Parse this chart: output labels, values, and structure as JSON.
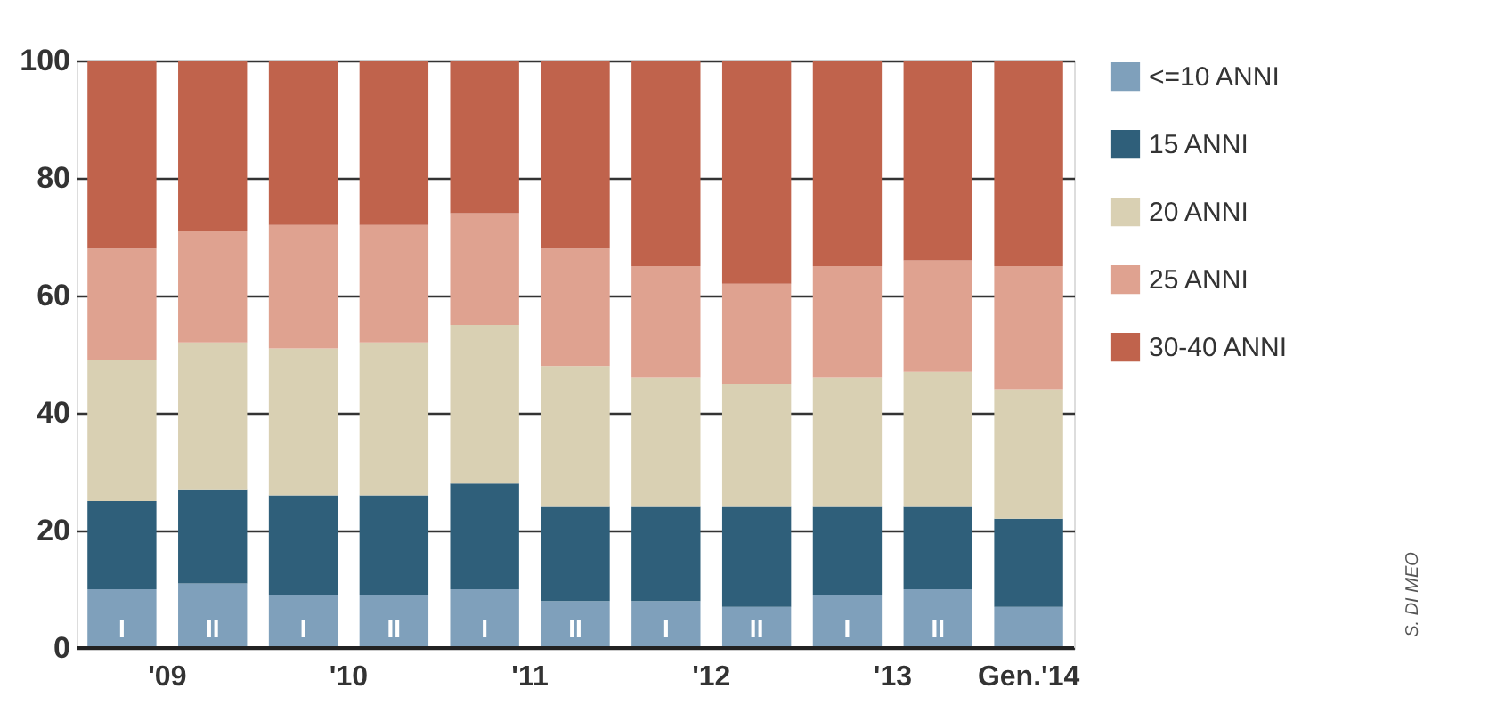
{
  "chart_data": {
    "type": "bar",
    "stacked": true,
    "categories": [
      "I",
      "II",
      "I",
      "II",
      "I",
      "II",
      "I",
      "II",
      "I",
      "II",
      null
    ],
    "series": [
      {
        "name": "<=10 ANNI",
        "color": "#7fa0bb",
        "values": [
          10,
          11,
          9,
          9,
          10,
          8,
          8,
          7,
          9,
          10,
          7
        ]
      },
      {
        "name": "15 ANNI",
        "color": "#2f5f7a",
        "values": [
          15,
          16,
          17,
          17,
          18,
          16,
          16,
          17,
          15,
          14,
          15
        ]
      },
      {
        "name": "20 ANNI",
        "color": "#d9d0b3",
        "values": [
          24,
          25,
          25,
          26,
          27,
          24,
          22,
          21,
          22,
          23,
          22
        ]
      },
      {
        "name": "25 ANNI",
        "color": "#dfa290",
        "values": [
          19,
          19,
          21,
          20,
          19,
          20,
          19,
          17,
          19,
          19,
          21
        ]
      },
      {
        "name": "30-40 ANNI",
        "color": "#c0634c",
        "values": [
          32,
          29,
          28,
          28,
          26,
          32,
          35,
          38,
          35,
          34,
          35
        ]
      }
    ],
    "ylim": [
      0,
      100
    ],
    "yticks": [
      0,
      20,
      40,
      60,
      80,
      100
    ],
    "grid": "y",
    "legend": "right",
    "annotations": [
      "'09",
      "'10",
      "'11",
      "'12",
      "'13",
      "Gen.'14",
      "S. DI MEO"
    ]
  }
}
